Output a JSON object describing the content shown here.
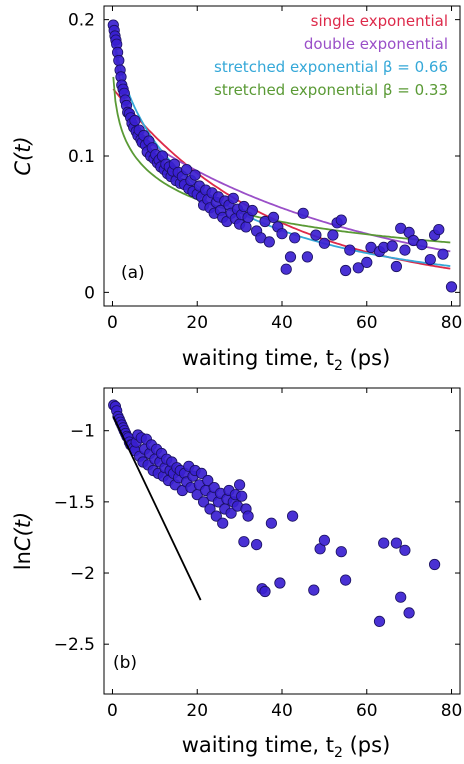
{
  "chart_data": [
    {
      "type": "scatter",
      "panel_label": "(a)",
      "xlabel": "waiting time, t",
      "xlabel_sub": "2",
      "xlabel_unit": " (ps)",
      "ylabel": "C",
      "ylabel_arg": "(t)",
      "xlim": [
        -2,
        82
      ],
      "ylim": [
        -0.01,
        0.21
      ],
      "xticks": [
        0,
        20,
        40,
        60,
        80
      ],
      "yticks": [
        0,
        0.1,
        0.2
      ],
      "ytick_labels": [
        "0",
        "0.1",
        "0.2"
      ],
      "point_color": "#3a1fd0",
      "points": [
        [
          0.2,
          0.196
        ],
        [
          0.4,
          0.192
        ],
        [
          0.6,
          0.188
        ],
        [
          0.8,
          0.185
        ],
        [
          1,
          0.182
        ],
        [
          1.2,
          0.176
        ],
        [
          1.5,
          0.17
        ],
        [
          1.8,
          0.163
        ],
        [
          2,
          0.158
        ],
        [
          2.2,
          0.152
        ],
        [
          2.5,
          0.149
        ],
        [
          2.8,
          0.146
        ],
        [
          3,
          0.141
        ],
        [
          3.3,
          0.137
        ],
        [
          3.6,
          0.132
        ],
        [
          4,
          0.131
        ],
        [
          4.3,
          0.128
        ],
        [
          4.6,
          0.124
        ],
        [
          5,
          0.121
        ],
        [
          5.3,
          0.126
        ],
        [
          5.6,
          0.118
        ],
        [
          6,
          0.115
        ],
        [
          6.3,
          0.119
        ],
        [
          6.7,
          0.112
        ],
        [
          7,
          0.11
        ],
        [
          7.4,
          0.115
        ],
        [
          7.8,
          0.108
        ],
        [
          8.2,
          0.103
        ],
        [
          8.6,
          0.111
        ],
        [
          9,
          0.1
        ],
        [
          9.4,
          0.106
        ],
        [
          9.8,
          0.098
        ],
        [
          10.2,
          0.101
        ],
        [
          10.6,
          0.095
        ],
        [
          11,
          0.097
        ],
        [
          11.4,
          0.092
        ],
        [
          11.8,
          0.1
        ],
        [
          12.2,
          0.09
        ],
        [
          12.6,
          0.094
        ],
        [
          13,
          0.087
        ],
        [
          13.4,
          0.092
        ],
        [
          13.8,
          0.085
        ],
        [
          14.2,
          0.089
        ],
        [
          14.6,
          0.094
        ],
        [
          15,
          0.082
        ],
        [
          15.5,
          0.088
        ],
        [
          16,
          0.08
        ],
        [
          16.5,
          0.085
        ],
        [
          17,
          0.079
        ],
        [
          17.5,
          0.09
        ],
        [
          18,
          0.076
        ],
        [
          18.5,
          0.082
        ],
        [
          19,
          0.074
        ],
        [
          19.5,
          0.086
        ],
        [
          20,
          0.072
        ],
        [
          20.5,
          0.078
        ],
        [
          21,
          0.07
        ],
        [
          21.5,
          0.064
        ],
        [
          22,
          0.075
        ],
        [
          22.5,
          0.068
        ],
        [
          23,
          0.062
        ],
        [
          23.5,
          0.073
        ],
        [
          24,
          0.058
        ],
        [
          24.5,
          0.066
        ],
        [
          25,
          0.07
        ],
        [
          25.5,
          0.06
        ],
        [
          26,
          0.055
        ],
        [
          26.5,
          0.067
        ],
        [
          27,
          0.052
        ],
        [
          27.5,
          0.064
        ],
        [
          28,
          0.058
        ],
        [
          28.5,
          0.069
        ],
        [
          29,
          0.054
        ],
        [
          29.5,
          0.061
        ],
        [
          30,
          0.05
        ],
        [
          30.5,
          0.057
        ],
        [
          31,
          0.063
        ],
        [
          31.5,
          0.048
        ],
        [
          32,
          0.055
        ],
        [
          33,
          0.06
        ],
        [
          34,
          0.045
        ],
        [
          35,
          0.04
        ],
        [
          36,
          0.052
        ],
        [
          37,
          0.037
        ],
        [
          38,
          0.055
        ],
        [
          39,
          0.048
        ],
        [
          40,
          0.043
        ],
        [
          41,
          0.017
        ],
        [
          42,
          0.026
        ],
        [
          43,
          0.04
        ],
        [
          45,
          0.058
        ],
        [
          46,
          0.026
        ],
        [
          48,
          0.042
        ],
        [
          50,
          0.036
        ],
        [
          52,
          0.042
        ],
        [
          53,
          0.051
        ],
        [
          54,
          0.053
        ],
        [
          55,
          0.016
        ],
        [
          56,
          0.031
        ],
        [
          58,
          0.018
        ],
        [
          60,
          0.022
        ],
        [
          61,
          0.033
        ],
        [
          63,
          0.03
        ],
        [
          64,
          0.033
        ],
        [
          66,
          0.034
        ],
        [
          67,
          0.019
        ],
        [
          68,
          0.047
        ],
        [
          69,
          0.031
        ],
        [
          70,
          0.044
        ],
        [
          71,
          0.038
        ],
        [
          73,
          0.035
        ],
        [
          75,
          0.024
        ],
        [
          76,
          0.042
        ],
        [
          77,
          0.046
        ],
        [
          78,
          0.028
        ],
        [
          80,
          0.004
        ]
      ],
      "series": [
        {
          "name": "single exponential",
          "color": "#dd2a4a",
          "model": "single",
          "params": [
            0.15,
            37.0
          ]
        },
        {
          "name": "double exponential",
          "color": "#9a4fc8",
          "model": "double",
          "params": [
            0.07,
            2.2,
            0.128,
            55.0
          ]
        },
        {
          "name": "stretched exponential β = 0.66",
          "color": "#35a8d8",
          "model": "stretched",
          "params": [
            0.2,
            22.0,
            0.66
          ]
        },
        {
          "name": "stretched exponential β = 0.33",
          "color": "#5a9a35",
          "model": "stretched",
          "params": [
            0.2,
            16.0,
            0.33
          ]
        }
      ]
    },
    {
      "type": "scatter",
      "panel_label": "(b)",
      "xlabel": "waiting time, t",
      "xlabel_sub": "2",
      "xlabel_unit": " (ps)",
      "ylabel": "ln",
      "ylabel_arg": "C(t)",
      "xlim": [
        -2,
        82
      ],
      "ylim": [
        -2.85,
        -0.7
      ],
      "xticks": [
        0,
        20,
        40,
        60,
        80
      ],
      "yticks": [
        -1,
        -1.5,
        -2,
        -2.5
      ],
      "ytick_labels": [
        "−1",
        "−1.5",
        "−2",
        "−2.5"
      ],
      "point_color": "#3a1fd0",
      "line": {
        "color": "#000000",
        "x": [
          0.2,
          20.8
        ],
        "y": [
          -0.9,
          -2.19
        ]
      },
      "points": [
        [
          0.3,
          -0.82
        ],
        [
          0.7,
          -0.83
        ],
        [
          1,
          -0.86
        ],
        [
          1.3,
          -0.9
        ],
        [
          1.6,
          -0.92
        ],
        [
          1.9,
          -0.94
        ],
        [
          2.2,
          -0.96
        ],
        [
          2.5,
          -0.98
        ],
        [
          2.8,
          -1.0
        ],
        [
          3.1,
          -1.02
        ],
        [
          3.4,
          -1.04
        ],
        [
          3.7,
          -1.05
        ],
        [
          4,
          -1.08
        ],
        [
          4.3,
          -1.1
        ],
        [
          4.6,
          -1.1
        ],
        [
          5,
          -1.12
        ],
        [
          5.3,
          -1.14
        ],
        [
          5.6,
          -1.08
        ],
        [
          6,
          -1.03
        ],
        [
          6.4,
          -1.18
        ],
        [
          6.8,
          -1.05
        ],
        [
          7.2,
          -1.22
        ],
        [
          7.6,
          -1.13
        ],
        [
          8,
          -1.06
        ],
        [
          8.4,
          -1.24
        ],
        [
          8.8,
          -1.16
        ],
        [
          9.2,
          -1.1
        ],
        [
          9.6,
          -1.28
        ],
        [
          10,
          -1.2
        ],
        [
          10.4,
          -1.13
        ],
        [
          10.8,
          -1.3
        ],
        [
          11.2,
          -1.22
        ],
        [
          11.6,
          -1.16
        ],
        [
          12,
          -1.32
        ],
        [
          12.4,
          -1.26
        ],
        [
          12.8,
          -1.2
        ],
        [
          13.2,
          -1.35
        ],
        [
          13.6,
          -1.28
        ],
        [
          14,
          -1.22
        ],
        [
          14.4,
          -1.3
        ],
        [
          14.8,
          -1.38
        ],
        [
          15.2,
          -1.26
        ],
        [
          15.6,
          -1.33
        ],
        [
          16,
          -1.28
        ],
        [
          16.5,
          -1.42
        ],
        [
          17,
          -1.3
        ],
        [
          17.5,
          -1.36
        ],
        [
          18,
          -1.25
        ],
        [
          18.5,
          -1.4
        ],
        [
          19,
          -1.32
        ],
        [
          19.5,
          -1.28
        ],
        [
          20,
          -1.45
        ],
        [
          20.5,
          -1.38
        ],
        [
          21,
          -1.3
        ],
        [
          21.5,
          -1.5
        ],
        [
          22,
          -1.42
        ],
        [
          22.5,
          -1.35
        ],
        [
          23,
          -1.55
        ],
        [
          23.5,
          -1.46
        ],
        [
          24,
          -1.4
        ],
        [
          24.5,
          -1.6
        ],
        [
          25,
          -1.5
        ],
        [
          25.5,
          -1.44
        ],
        [
          26,
          -1.65
        ],
        [
          26.5,
          -1.55
        ],
        [
          27,
          -1.48
        ],
        [
          27.5,
          -1.42
        ],
        [
          28,
          -1.58
        ],
        [
          28.5,
          -1.5
        ],
        [
          29,
          -1.45
        ],
        [
          29.5,
          -1.53
        ],
        [
          30,
          -1.38
        ],
        [
          30.5,
          -1.46
        ],
        [
          31,
          -1.78
        ],
        [
          31.5,
          -1.55
        ],
        [
          32,
          -1.6
        ],
        [
          34,
          -1.8
        ],
        [
          35.3,
          -2.11
        ],
        [
          36,
          -2.13
        ],
        [
          37.5,
          -1.65
        ],
        [
          39.5,
          -2.07
        ],
        [
          42.5,
          -1.6
        ],
        [
          47.5,
          -2.12
        ],
        [
          49,
          -1.83
        ],
        [
          50,
          -1.77
        ],
        [
          54,
          -1.85
        ],
        [
          55,
          -2.05
        ],
        [
          63,
          -2.34
        ],
        [
          64,
          -1.79
        ],
        [
          67,
          -1.79
        ],
        [
          68,
          -2.17
        ],
        [
          69,
          -1.84
        ],
        [
          70,
          -2.28
        ],
        [
          76,
          -1.94
        ]
      ]
    }
  ]
}
